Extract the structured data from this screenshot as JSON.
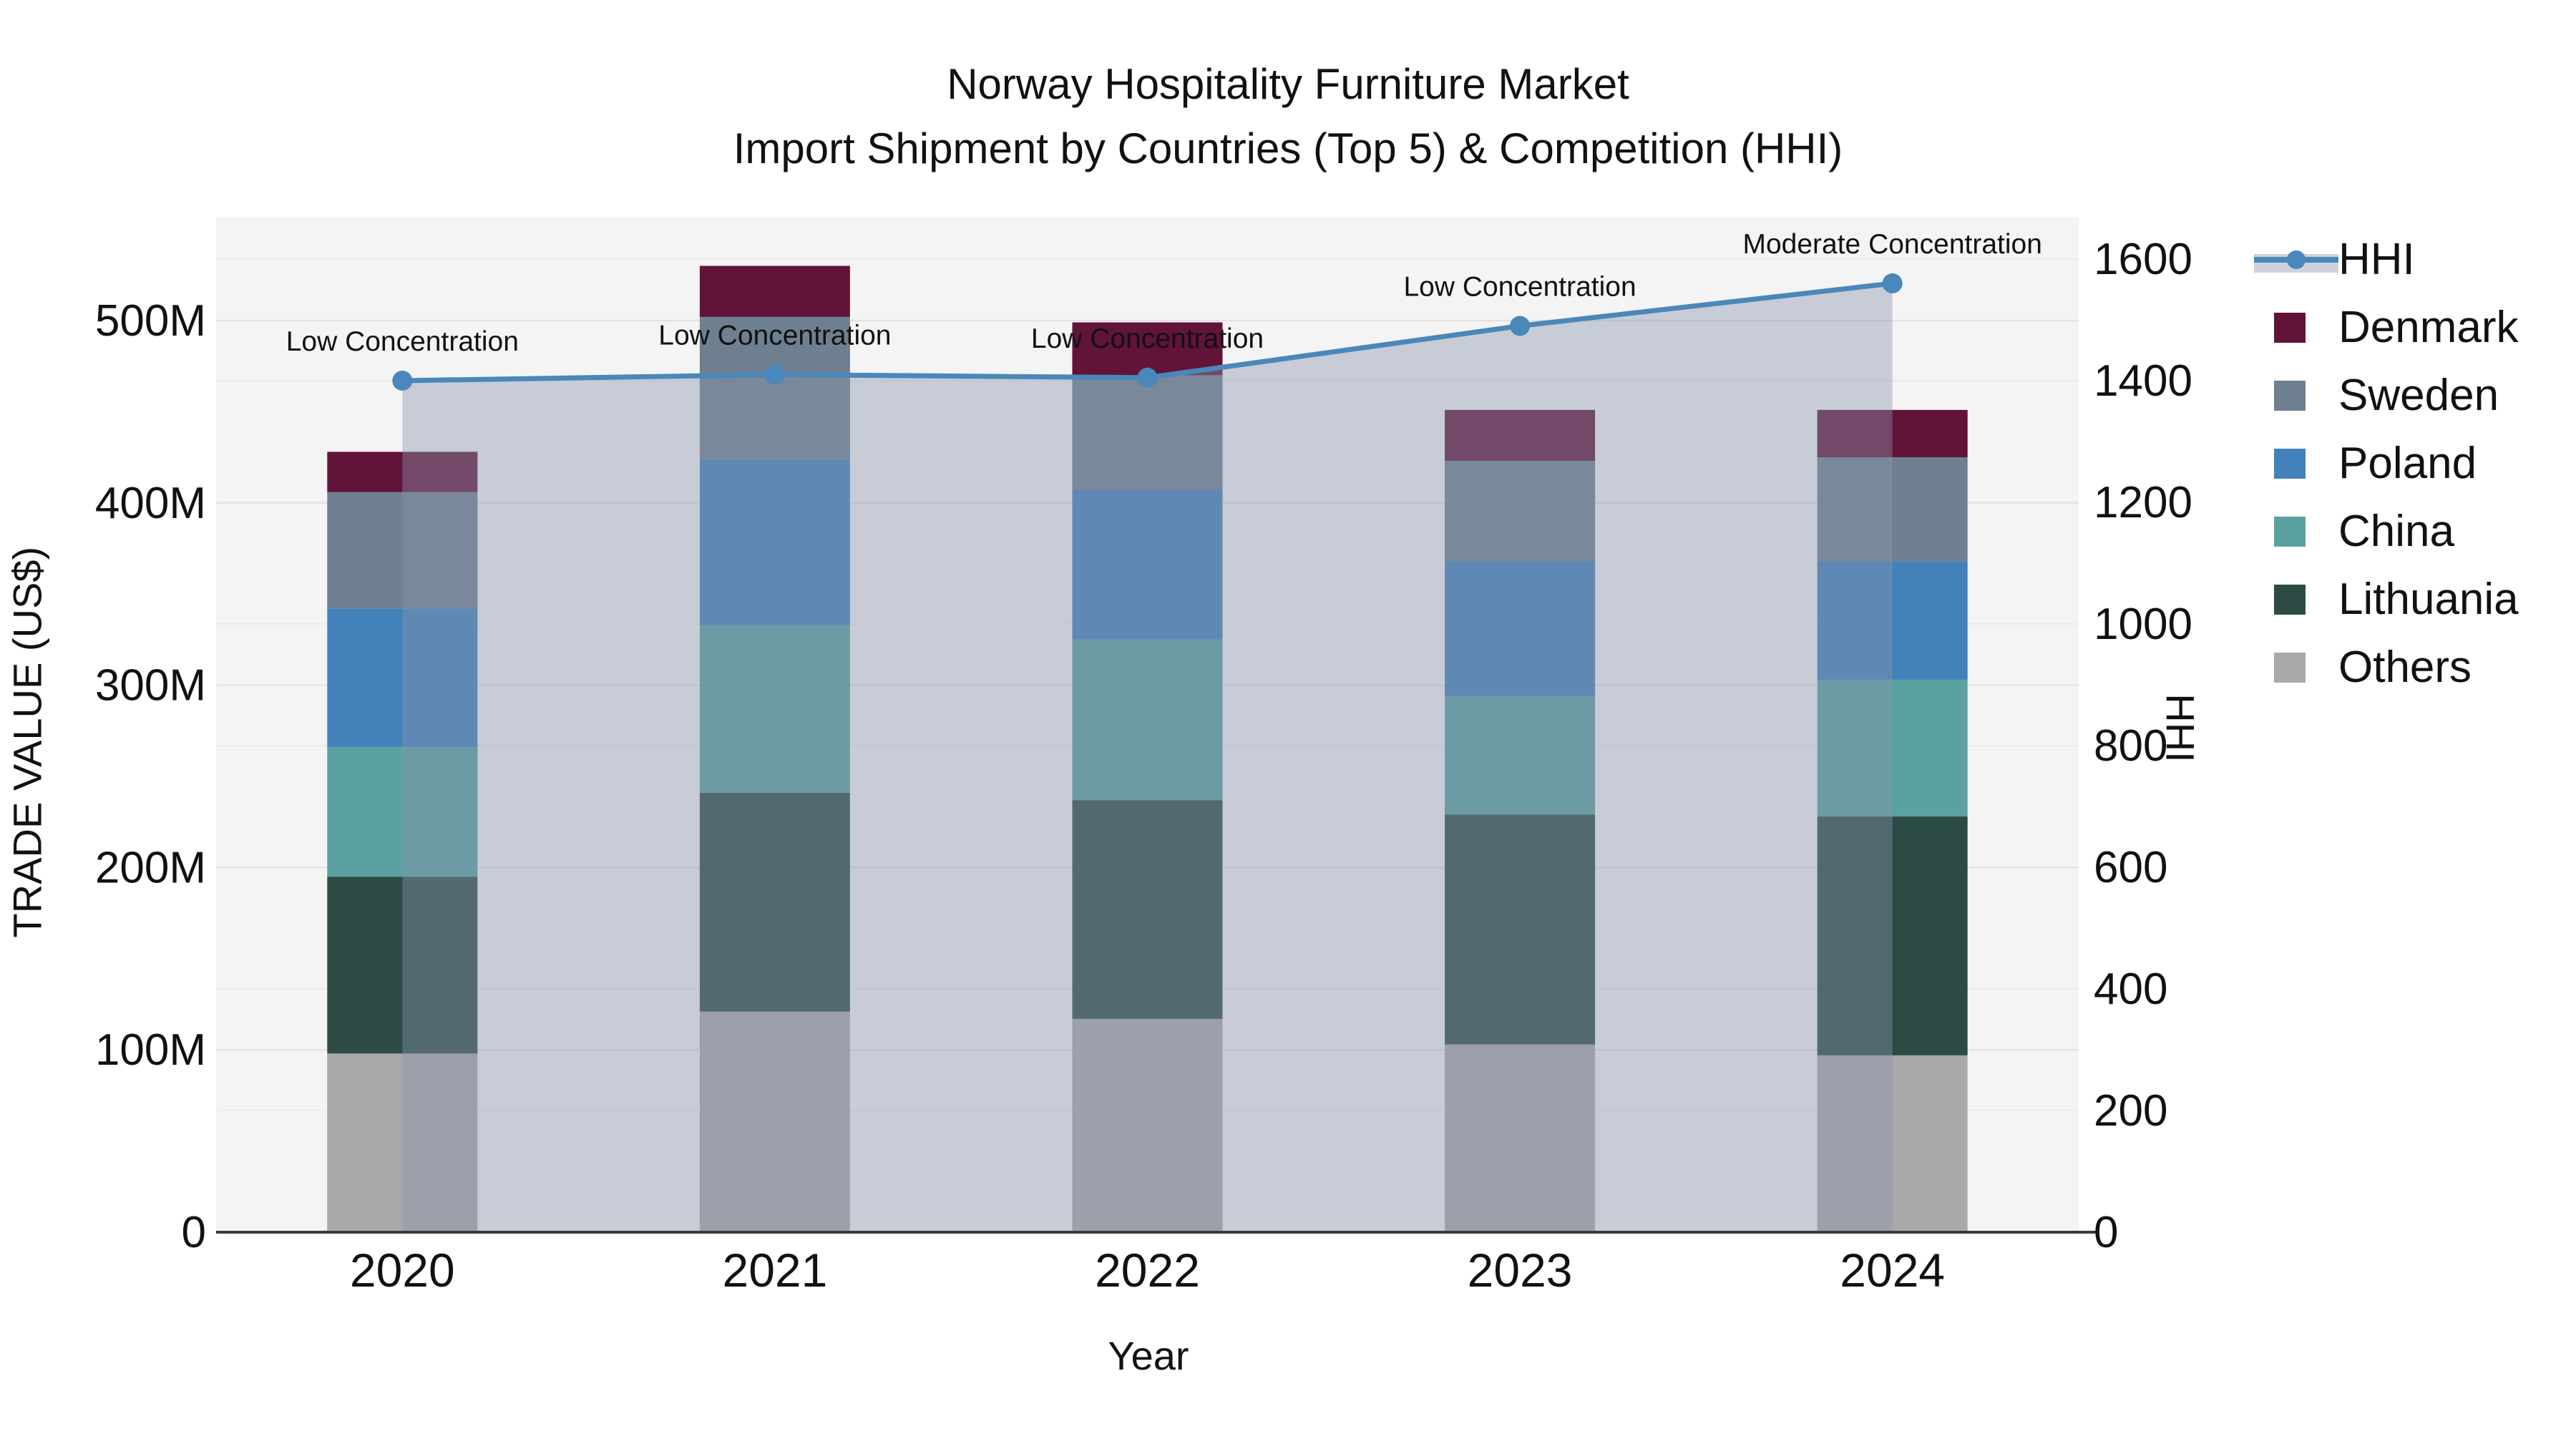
{
  "figure": {
    "title_line1": "Norway Hospitality Furniture Market",
    "title_line2": "Import Shipment by Countries (Top 5) & Competition (HHI)"
  },
  "chart_data": {
    "type": "bar+line",
    "subtype": "stacked bars (left axis) with HHI line and area fill (right axis)",
    "categories": [
      "2020",
      "2021",
      "2022",
      "2023",
      "2024"
    ],
    "values_unit": "million US$",
    "series": [
      {
        "name": "Denmark",
        "color": "#621338",
        "values": [
          22,
          28,
          29,
          28,
          26
        ]
      },
      {
        "name": "Sweden",
        "color": "#6e8090",
        "values": [
          64,
          78,
          63,
          55,
          57
        ]
      },
      {
        "name": "Poland",
        "color": "#4381bb",
        "values": [
          76,
          91,
          82,
          74,
          65
        ]
      },
      {
        "name": "China",
        "color": "#5ba1a0",
        "values": [
          71,
          92,
          88,
          65,
          75
        ]
      },
      {
        "name": "Lithuania",
        "color": "#2d4b45",
        "values": [
          97,
          120,
          120,
          126,
          131
        ]
      },
      {
        "name": "Others",
        "color": "#a9a9a9",
        "values": [
          98,
          121,
          117,
          103,
          97
        ]
      }
    ],
    "stack_order_bottom_to_top": [
      "Others",
      "Lithuania",
      "China",
      "Poland",
      "Sweden",
      "Denmark"
    ],
    "bar_totals": [
      428,
      530,
      499,
      451,
      451
    ],
    "line": {
      "name": "HHI",
      "color": "#4a87ba",
      "fill_color": "rgba(136,147,172,0.42)",
      "values": [
        1400,
        1410,
        1405,
        1490,
        1560
      ]
    },
    "annotations": [
      {
        "category": "2020",
        "text": "Low Concentration"
      },
      {
        "category": "2021",
        "text": "Low Concentration"
      },
      {
        "category": "2022",
        "text": "Low Concentration"
      },
      {
        "category": "2023",
        "text": "Low Concentration"
      },
      {
        "category": "2024",
        "text": "Moderate Concentration"
      }
    ],
    "axes": {
      "left": {
        "title": "TRADE VALUE (US$)",
        "tick_labels": [
          "0",
          "100M",
          "200M",
          "300M",
          "400M",
          "500M"
        ],
        "tick_values": [
          0,
          100,
          200,
          300,
          400,
          500
        ],
        "range": [
          0,
          557
        ]
      },
      "right": {
        "title": "HHI",
        "tick_labels": [
          "0",
          "200",
          "400",
          "600",
          "800",
          "1000",
          "1200",
          "1400",
          "1600"
        ],
        "tick_values": [
          0,
          200,
          400,
          600,
          800,
          1000,
          1200,
          1400,
          1600
        ],
        "range": [
          0,
          1600
        ]
      },
      "x": {
        "title": "Year"
      }
    },
    "legend_order": [
      "HHI",
      "Denmark",
      "Sweden",
      "Poland",
      "China",
      "Lithuania",
      "Others"
    ],
    "plot_background": "#f4f4f4",
    "gridline_color_left": "#e3e3e3",
    "gridline_color_right": "#ebebeb",
    "axis_line_color": "#3b3b3b",
    "tick_text_color": "#111111"
  }
}
